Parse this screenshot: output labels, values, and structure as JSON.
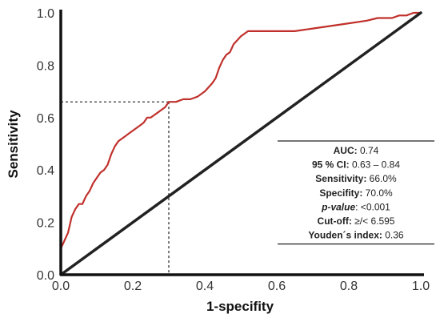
{
  "chart_data": {
    "type": "line",
    "title": "",
    "xlabel": "1-specifity",
    "ylabel": "Sensitivity",
    "xlim": [
      0,
      1
    ],
    "ylim": [
      0,
      1
    ],
    "xticks": [
      "0.0",
      "0.2",
      "0.4",
      "0.6",
      "0.8",
      "1.0"
    ],
    "yticks": [
      "0.0",
      "0.2",
      "0.4",
      "0.6",
      "0.8",
      "1.0"
    ],
    "grid": false,
    "series": [
      {
        "color": "#c0302b",
        "x": [
          0.0,
          0.0,
          0.01,
          0.02,
          0.03,
          0.04,
          0.05,
          0.06,
          0.07,
          0.08,
          0.09,
          0.1,
          0.11,
          0.12,
          0.13,
          0.14,
          0.15,
          0.16,
          0.17,
          0.18,
          0.19,
          0.2,
          0.21,
          0.22,
          0.23,
          0.24,
          0.25,
          0.26,
          0.27,
          0.28,
          0.29,
          0.3,
          0.32,
          0.34,
          0.36,
          0.38,
          0.4,
          0.42,
          0.43,
          0.44,
          0.45,
          0.46,
          0.47,
          0.48,
          0.5,
          0.52,
          0.54,
          0.56,
          0.6,
          0.65,
          0.7,
          0.75,
          0.8,
          0.85,
          0.88,
          0.9,
          0.92,
          0.94,
          0.96,
          0.98,
          1.0
        ],
        "y": [
          0.0,
          0.1,
          0.13,
          0.16,
          0.22,
          0.25,
          0.27,
          0.27,
          0.3,
          0.32,
          0.35,
          0.37,
          0.39,
          0.4,
          0.42,
          0.46,
          0.49,
          0.51,
          0.52,
          0.53,
          0.54,
          0.55,
          0.56,
          0.57,
          0.58,
          0.6,
          0.6,
          0.61,
          0.62,
          0.63,
          0.64,
          0.66,
          0.66,
          0.67,
          0.67,
          0.68,
          0.7,
          0.73,
          0.75,
          0.79,
          0.82,
          0.84,
          0.85,
          0.88,
          0.91,
          0.93,
          0.93,
          0.93,
          0.93,
          0.93,
          0.94,
          0.95,
          0.96,
          0.97,
          0.98,
          0.98,
          0.98,
          0.99,
          0.99,
          1.0,
          1.0
        ]
      },
      {
        "color": "#222222",
        "x": [
          0,
          1
        ],
        "y": [
          0,
          1
        ]
      }
    ],
    "cutoff_point": {
      "x": 0.3,
      "y": 0.66
    }
  },
  "stats": [
    {
      "label": "AUC:",
      "value": " 0.74",
      "italic": false
    },
    {
      "label": "95 % CI:",
      "value": " 0.63 – 0.84",
      "italic": false
    },
    {
      "label": "Sensitivity:",
      "value": " 66.0%",
      "italic": false
    },
    {
      "label": "Specifity:",
      "value": " 70.0%",
      "italic": false
    },
    {
      "label": "p-value",
      "value": ": <0.001",
      "italic": true
    },
    {
      "label": "Cut-off:",
      "value": " ≥/< 6.595",
      "italic": false
    },
    {
      "label": "Youden´s index:",
      "value": " 0.36",
      "italic": false
    }
  ]
}
